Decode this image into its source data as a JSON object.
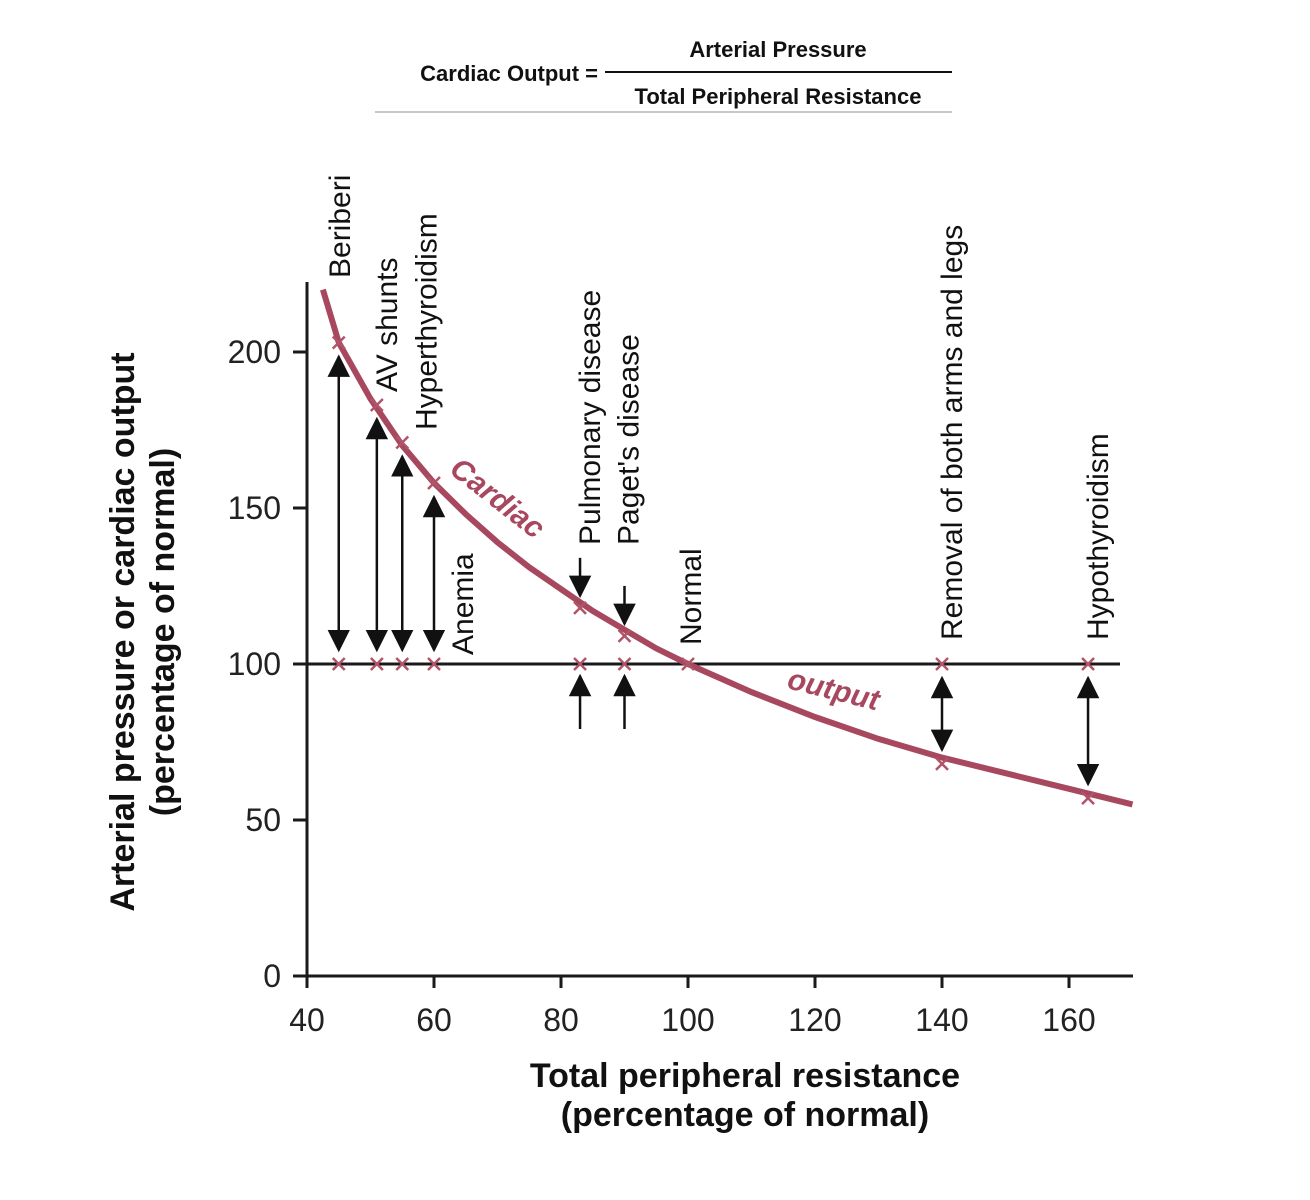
{
  "formula": {
    "lhs": "Cardiac Output =",
    "numerator": "Arterial Pressure",
    "denominator": "Total Peripheral Resistance"
  },
  "colors": {
    "curve": "#a8485f",
    "marker": "#b0546a",
    "axis": "#1a1a1a",
    "text": "#111111"
  },
  "chart_data": {
    "type": "line",
    "xlabel_line1": "Total peripheral resistance",
    "xlabel_line2": "(percentage of normal)",
    "ylabel_line1": "Arterial pressure or cardiac output",
    "ylabel_line2": "(percentage of normal)",
    "xlim": [
      40,
      170
    ],
    "ylim": [
      0,
      220
    ],
    "x_ticks": [
      "40",
      "60",
      "80",
      "100",
      "120",
      "140",
      "160"
    ],
    "y_ticks": [
      "0",
      "50",
      "100",
      "150",
      "200"
    ],
    "grid": false,
    "arterial_pressure_line": 100,
    "curve_label_1": "Cardiac",
    "curve_label_2": "output",
    "cardiac_output_curve": {
      "x": [
        42.5,
        45,
        50,
        55,
        60,
        65,
        70,
        75,
        80,
        85,
        90,
        95,
        100,
        110,
        120,
        130,
        140,
        150,
        160,
        170
      ],
      "y": [
        220,
        203,
        185,
        170,
        158,
        148,
        139,
        131,
        124,
        117,
        111,
        105,
        100,
        91,
        83,
        76,
        70,
        65,
        60,
        55
      ]
    },
    "conditions": [
      {
        "name": "Beriberi",
        "x": 45,
        "cardiac_output": 203,
        "pressure": 100
      },
      {
        "name": "AV shunts",
        "x": 51,
        "cardiac_output": 183,
        "pressure": 100
      },
      {
        "name": "Hyperthyroidism",
        "x": 55,
        "cardiac_output": 171,
        "pressure": 100
      },
      {
        "name": "Anemia",
        "x": 60,
        "cardiac_output": 158,
        "pressure": 100
      },
      {
        "name": "Pulmonary disease",
        "x": 83,
        "cardiac_output": 118,
        "pressure": 100
      },
      {
        "name": "Paget's disease",
        "x": 90,
        "cardiac_output": 109,
        "pressure": 100
      },
      {
        "name": "Normal",
        "x": 100,
        "cardiac_output": 100,
        "pressure": 100
      },
      {
        "name": "Removal of both arms and legs",
        "x": 140,
        "cardiac_output": 68,
        "pressure": 100
      },
      {
        "name": "Hypothyroidism",
        "x": 163,
        "cardiac_output": 57,
        "pressure": 100
      }
    ]
  }
}
